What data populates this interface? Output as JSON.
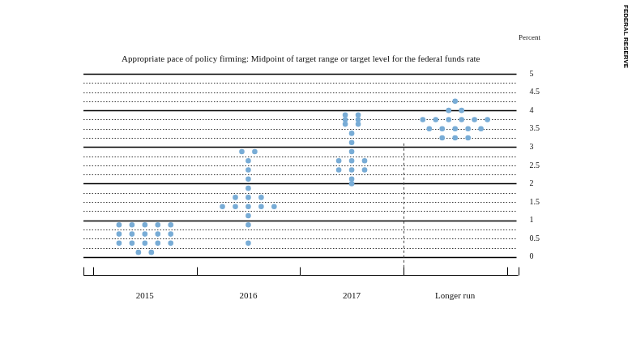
{
  "chart_data": {
    "type": "scatter",
    "title": "Appropriate pace of policy firming: Midpoint of target range or target level for the federal funds rate",
    "y_label": "Percent",
    "source": "FEDERAL RESERVE",
    "categories": [
      "2015",
      "2016",
      "2017",
      "Longer run"
    ],
    "values": [
      [
        0.875,
        0.875,
        0.875,
        0.875,
        0.875,
        0.625,
        0.625,
        0.625,
        0.625,
        0.625,
        0.375,
        0.375,
        0.375,
        0.375,
        0.375,
        0.125,
        0.125
      ],
      [
        2.875,
        2.875,
        2.625,
        2.375,
        2.125,
        1.875,
        1.625,
        1.625,
        1.625,
        1.375,
        1.375,
        1.375,
        1.375,
        1.375,
        1.125,
        0.875,
        0.375
      ],
      [
        3.875,
        3.875,
        3.75,
        3.75,
        3.625,
        3.625,
        3.375,
        3.125,
        2.875,
        2.625,
        2.625,
        2.625,
        2.375,
        2.375,
        2.375,
        2.125,
        2.0
      ],
      [
        4.25,
        4.0,
        4.0,
        3.75,
        3.75,
        3.75,
        3.75,
        3.75,
        3.75,
        3.5,
        3.5,
        3.5,
        3.5,
        3.5,
        3.25,
        3.25,
        3.25
      ]
    ],
    "color": "#78acd6",
    "marker": "circle",
    "ylim": [
      0,
      5
    ],
    "yticks": [
      0,
      0.5,
      1,
      1.5,
      2,
      2.5,
      3,
      3.5,
      4,
      4.5,
      5
    ],
    "grid": true
  }
}
